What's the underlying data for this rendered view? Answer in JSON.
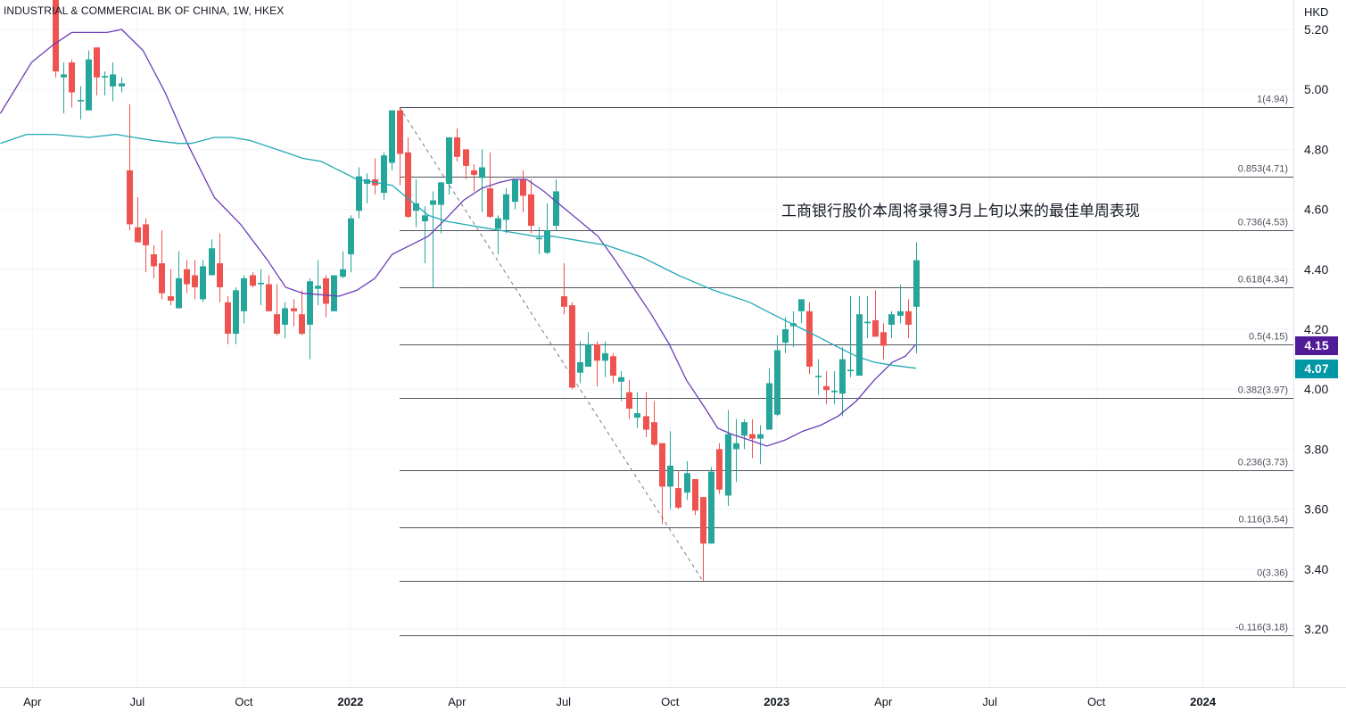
{
  "header": {
    "title": "INDUSTRIAL & COMMERCIAL BK OF CHINA, 1W, HKEX",
    "currency": "HKD"
  },
  "annotation": "工商银行股价本周将录得3月上旬以来的最佳单周表现",
  "colors": {
    "up": "#26a69a",
    "down": "#ef5350",
    "ma_short": "#6a3db8",
    "ma_long": "#22a8b4",
    "ma_short_label": "#4f1b96",
    "ma_long_label": "#0097a7",
    "fib": "#50535e",
    "grid": "#f0f3fa"
  },
  "price_labels": {
    "ma_short": "4.15",
    "ma_long": "4.07"
  },
  "chart_data": {
    "type": "candlestick",
    "title": "INDUSTRIAL & COMMERCIAL BK OF CHINA, 1W, HKEX",
    "ylabel": "HKD",
    "ylim": [
      3.0,
      5.31
    ],
    "y_ticks": [
      "5.20",
      "5.00",
      "4.80",
      "4.60",
      "4.40",
      "4.20",
      "4.00",
      "3.80",
      "3.60",
      "3.40",
      "3.20"
    ],
    "x_ticks": [
      {
        "week": -2.8,
        "label": "Apr",
        "bold": false
      },
      {
        "week": 10,
        "label": "Jul",
        "bold": false
      },
      {
        "week": 23,
        "label": "Oct",
        "bold": false
      },
      {
        "week": 36,
        "label": "2022",
        "bold": true
      },
      {
        "week": 49,
        "label": "Apr",
        "bold": false
      },
      {
        "week": 62,
        "label": "Jul",
        "bold": false
      },
      {
        "week": 75,
        "label": "Oct",
        "bold": false
      },
      {
        "week": 88,
        "label": "2023",
        "bold": true
      },
      {
        "week": 101,
        "label": "Apr",
        "bold": false
      },
      {
        "week": 114,
        "label": "Jul",
        "bold": false
      },
      {
        "week": 127,
        "label": "Oct",
        "bold": false
      },
      {
        "week": 140,
        "label": "2024",
        "bold": true
      }
    ],
    "candles_ohlc": [
      [
        5.3,
        5.35,
        5.04,
        5.06
      ],
      [
        5.04,
        5.09,
        4.92,
        5.05
      ],
      [
        5.09,
        5.1,
        4.94,
        4.99
      ],
      [
        4.96,
        5.01,
        4.9,
        4.965
      ],
      [
        4.93,
        5.13,
        4.93,
        5.1
      ],
      [
        5.14,
        5.14,
        4.98,
        5.04
      ],
      [
        5.04,
        5.06,
        4.98,
        5.045
      ],
      [
        5.01,
        5.09,
        4.96,
        5.05
      ],
      [
        5.01,
        5.04,
        4.99,
        5.02
      ],
      [
        4.73,
        4.95,
        4.53,
        4.55
      ],
      [
        4.54,
        4.64,
        4.49,
        4.49
      ],
      [
        4.55,
        4.57,
        4.39,
        4.48
      ],
      [
        4.45,
        4.48,
        4.37,
        4.41
      ],
      [
        4.42,
        4.53,
        4.3,
        4.32
      ],
      [
        4.31,
        4.4,
        4.28,
        4.295
      ],
      [
        4.27,
        4.46,
        4.27,
        4.37
      ],
      [
        4.4,
        4.43,
        4.32,
        4.35
      ],
      [
        4.38,
        4.43,
        4.3,
        4.34
      ],
      [
        4.3,
        4.43,
        4.29,
        4.41
      ],
      [
        4.38,
        4.5,
        4.38,
        4.47
      ],
      [
        4.42,
        4.52,
        4.29,
        4.34
      ],
      [
        4.29,
        4.31,
        4.15,
        4.185
      ],
      [
        4.185,
        4.34,
        4.15,
        4.33
      ],
      [
        4.26,
        4.38,
        4.22,
        4.37
      ],
      [
        4.38,
        4.39,
        4.34,
        4.345
      ],
      [
        4.35,
        4.4,
        4.28,
        4.355
      ],
      [
        4.35,
        4.38,
        4.27,
        4.26
      ],
      [
        4.25,
        4.35,
        4.18,
        4.185
      ],
      [
        4.215,
        4.29,
        4.17,
        4.27
      ],
      [
        4.27,
        4.3,
        4.21,
        4.26
      ],
      [
        4.25,
        4.33,
        4.18,
        4.185
      ],
      [
        4.215,
        4.37,
        4.1,
        4.36
      ],
      [
        4.335,
        4.43,
        4.28,
        4.345
      ],
      [
        4.37,
        4.38,
        4.24,
        4.285
      ],
      [
        4.26,
        4.38,
        4.26,
        4.38
      ],
      [
        4.375,
        4.46,
        4.37,
        4.4
      ],
      [
        4.45,
        4.58,
        4.39,
        4.57
      ],
      [
        4.595,
        4.74,
        4.57,
        4.71
      ],
      [
        4.685,
        4.72,
        4.62,
        4.7
      ],
      [
        4.7,
        4.77,
        4.65,
        4.68
      ],
      [
        4.655,
        4.79,
        4.63,
        4.78
      ],
      [
        4.755,
        4.93,
        4.73,
        4.93
      ],
      [
        4.93,
        4.94,
        4.68,
        4.785
      ],
      [
        4.79,
        4.84,
        4.57,
        4.575
      ],
      [
        4.595,
        4.7,
        4.54,
        4.62
      ],
      [
        4.56,
        4.61,
        4.42,
        4.58
      ],
      [
        4.615,
        4.66,
        4.34,
        4.63
      ],
      [
        4.615,
        4.69,
        4.52,
        4.69
      ],
      [
        4.685,
        4.84,
        4.65,
        4.84
      ],
      [
        4.84,
        4.87,
        4.76,
        4.775
      ],
      [
        4.8,
        4.8,
        4.7,
        4.745
      ],
      [
        4.73,
        4.75,
        4.66,
        4.715
      ],
      [
        4.705,
        4.8,
        4.59,
        4.74
      ],
      [
        4.67,
        4.79,
        4.57,
        4.575
      ],
      [
        4.535,
        4.58,
        4.45,
        4.57
      ],
      [
        4.565,
        4.67,
        4.52,
        4.65
      ],
      [
        4.625,
        4.7,
        4.6,
        4.7
      ],
      [
        4.7,
        4.73,
        4.59,
        4.645
      ],
      [
        4.65,
        4.7,
        4.52,
        4.545
      ],
      [
        4.5,
        4.54,
        4.45,
        4.505
      ],
      [
        4.455,
        4.62,
        4.45,
        4.53
      ],
      [
        4.545,
        4.7,
        4.53,
        4.66
      ],
      [
        4.31,
        4.42,
        4.25,
        4.275
      ],
      [
        4.28,
        4.29,
        4.0,
        4.005
      ],
      [
        4.055,
        4.16,
        4.02,
        4.09
      ],
      [
        4.075,
        4.19,
        4.075,
        4.15
      ],
      [
        4.15,
        4.16,
        4.01,
        4.095
      ],
      [
        4.095,
        4.16,
        4.04,
        4.12
      ],
      [
        4.11,
        4.12,
        4.02,
        4.045
      ],
      [
        4.025,
        4.06,
        3.96,
        4.04
      ],
      [
        3.99,
        4.03,
        3.9,
        3.935
      ],
      [
        3.905,
        3.99,
        3.87,
        3.92
      ],
      [
        3.91,
        3.99,
        3.84,
        3.865
      ],
      [
        3.89,
        3.96,
        3.81,
        3.815
      ],
      [
        3.82,
        3.82,
        3.55,
        3.675
      ],
      [
        3.675,
        3.86,
        3.6,
        3.745
      ],
      [
        3.67,
        3.73,
        3.6,
        3.605
      ],
      [
        3.655,
        3.76,
        3.63,
        3.72
      ],
      [
        3.7,
        3.7,
        3.58,
        3.595
      ],
      [
        3.64,
        3.64,
        3.36,
        3.485
      ],
      [
        3.485,
        3.74,
        3.485,
        3.725
      ],
      [
        3.8,
        3.82,
        3.65,
        3.665
      ],
      [
        3.645,
        3.93,
        3.61,
        3.85
      ],
      [
        3.8,
        3.9,
        3.69,
        3.82
      ],
      [
        3.845,
        3.9,
        3.8,
        3.89
      ],
      [
        3.85,
        3.9,
        3.77,
        3.835
      ],
      [
        3.835,
        3.88,
        3.75,
        3.85
      ],
      [
        3.865,
        4.07,
        3.865,
        4.02
      ],
      [
        3.915,
        4.18,
        3.91,
        4.13
      ],
      [
        4.155,
        4.24,
        4.12,
        4.2
      ],
      [
        4.21,
        4.26,
        4.14,
        4.22
      ],
      [
        4.26,
        4.3,
        4.22,
        4.3
      ],
      [
        4.26,
        4.29,
        4.05,
        4.075
      ],
      [
        4.04,
        4.1,
        3.98,
        4.045
      ],
      [
        4.01,
        4.06,
        3.95,
        3.997
      ],
      [
        3.99,
        4.06,
        3.95,
        3.995
      ],
      [
        3.985,
        4.14,
        3.91,
        4.1
      ],
      [
        4.06,
        4.31,
        4.04,
        4.065
      ],
      [
        4.045,
        4.31,
        4.045,
        4.25
      ],
      [
        4.22,
        4.31,
        4.17,
        4.225
      ],
      [
        4.23,
        4.33,
        4.18,
        4.175
      ],
      [
        4.19,
        4.22,
        4.1,
        4.145
      ],
      [
        4.215,
        4.26,
        4.17,
        4.25
      ],
      [
        4.245,
        4.35,
        4.22,
        4.26
      ],
      [
        4.26,
        4.3,
        4.17,
        4.215
      ],
      [
        4.275,
        4.49,
        4.12,
        4.43
      ]
    ],
    "series": [
      {
        "name": "MA short",
        "color_key": "ma_short",
        "points": [
          [
            -6.7,
            4.92
          ],
          [
            -2.9,
            5.09
          ],
          [
            -0.2,
            5.15
          ],
          [
            2.0,
            5.19
          ],
          [
            6.3,
            5.19
          ],
          [
            8.1,
            5.2
          ],
          [
            10.7,
            5.13
          ],
          [
            13.4,
            4.99
          ],
          [
            16.1,
            4.82
          ],
          [
            19.4,
            4.64
          ],
          [
            22.6,
            4.55
          ],
          [
            25.9,
            4.43
          ],
          [
            28.1,
            4.34
          ],
          [
            30.2,
            4.32
          ],
          [
            34.6,
            4.31
          ],
          [
            36.8,
            4.33
          ],
          [
            39.0,
            4.37
          ],
          [
            41.1,
            4.45
          ],
          [
            43.3,
            4.48
          ],
          [
            45.5,
            4.51
          ],
          [
            47.7,
            4.57
          ],
          [
            49.8,
            4.63
          ],
          [
            52.0,
            4.67
          ],
          [
            54.2,
            4.69
          ],
          [
            55.8,
            4.7
          ],
          [
            57.5,
            4.7
          ],
          [
            59.6,
            4.66
          ],
          [
            61.8,
            4.61
          ],
          [
            64.0,
            4.56
          ],
          [
            66.2,
            4.51
          ],
          [
            68.3,
            4.43
          ],
          [
            70.5,
            4.34
          ],
          [
            72.7,
            4.25
          ],
          [
            74.9,
            4.15
          ],
          [
            77.0,
            4.03
          ],
          [
            79.2,
            3.94
          ],
          [
            80.8,
            3.87
          ],
          [
            82.5,
            3.85
          ],
          [
            84.7,
            3.83
          ],
          [
            86.8,
            3.81
          ],
          [
            89.0,
            3.83
          ],
          [
            91.2,
            3.86
          ],
          [
            93.4,
            3.88
          ],
          [
            95.5,
            3.91
          ],
          [
            97.7,
            3.96
          ],
          [
            99.9,
            4.03
          ],
          [
            102.1,
            4.09
          ],
          [
            103.7,
            4.11
          ],
          [
            105,
            4.15
          ]
        ]
      },
      {
        "name": "MA long",
        "color_key": "ma_long",
        "points": [
          [
            -6.7,
            4.82
          ],
          [
            -3.5,
            4.85
          ],
          [
            -0.2,
            4.85
          ],
          [
            4.1,
            4.84
          ],
          [
            7.4,
            4.85
          ],
          [
            9.6,
            4.84
          ],
          [
            11.8,
            4.83
          ],
          [
            15.0,
            4.82
          ],
          [
            16.6,
            4.82
          ],
          [
            19.4,
            4.84
          ],
          [
            21.5,
            4.84
          ],
          [
            23.7,
            4.83
          ],
          [
            25.9,
            4.81
          ],
          [
            28.1,
            4.79
          ],
          [
            30.2,
            4.77
          ],
          [
            32.4,
            4.76
          ],
          [
            34.6,
            4.73
          ],
          [
            36.8,
            4.7
          ],
          [
            39.0,
            4.69
          ],
          [
            41.1,
            4.68
          ],
          [
            43.3,
            4.63
          ],
          [
            45.5,
            4.58
          ],
          [
            47.7,
            4.56
          ],
          [
            49.8,
            4.55
          ],
          [
            52.0,
            4.54
          ],
          [
            54.2,
            4.53
          ],
          [
            56.4,
            4.52
          ],
          [
            58.5,
            4.51
          ],
          [
            60.7,
            4.51
          ],
          [
            62.9,
            4.5
          ],
          [
            67.2,
            4.48
          ],
          [
            71.6,
            4.44
          ],
          [
            76.0,
            4.38
          ],
          [
            80.3,
            4.33
          ],
          [
            82.5,
            4.31
          ],
          [
            84.7,
            4.29
          ],
          [
            86.8,
            4.26
          ],
          [
            89.0,
            4.23
          ],
          [
            91.2,
            4.2
          ],
          [
            93.4,
            4.17
          ],
          [
            95.5,
            4.14
          ],
          [
            97.7,
            4.11
          ],
          [
            99.9,
            4.09
          ],
          [
            102.1,
            4.08
          ],
          [
            105,
            4.07
          ]
        ]
      }
    ],
    "fib_trend": {
      "from": [
        42,
        4.94
      ],
      "to": [
        79,
        3.36
      ]
    },
    "fib_levels": [
      {
        "price": 4.94,
        "label": "1(4.94)"
      },
      {
        "price": 4.71,
        "label": "0.853(4.71)"
      },
      {
        "price": 4.53,
        "label": "0.736(4.53)"
      },
      {
        "price": 4.34,
        "label": "0.618(4.34)"
      },
      {
        "price": 4.15,
        "label": "0.5(4.15)"
      },
      {
        "price": 3.97,
        "label": "0.382(3.97)"
      },
      {
        "price": 3.73,
        "label": "0.236(3.73)"
      },
      {
        "price": 3.54,
        "label": "0.116(3.54)"
      },
      {
        "price": 3.36,
        "label": "0(3.36)"
      },
      {
        "price": 3.18,
        "label": "-0.116(3.18)"
      }
    ]
  }
}
